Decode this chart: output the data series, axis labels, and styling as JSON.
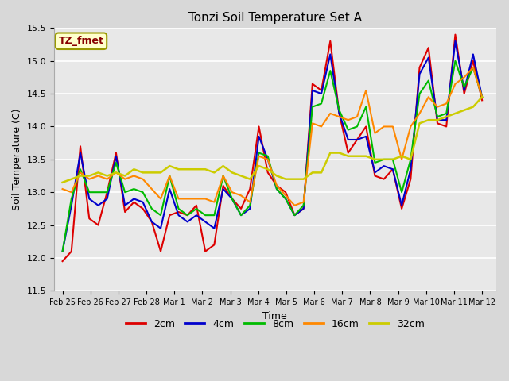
{
  "title": "Tonzi Soil Temperature Set A",
  "xlabel": "Time",
  "ylabel": "Soil Temperature (C)",
  "ylim": [
    11.5,
    15.5
  ],
  "annotation_text": "TZ_fmet",
  "annotation_color": "#880000",
  "annotation_bg": "#ffffcc",
  "annotation_edge": "#999900",
  "fig_facecolor": "#d8d8d8",
  "plot_facecolor": "#e8e8e8",
  "legend_entries": [
    "2cm",
    "4cm",
    "8cm",
    "16cm",
    "32cm"
  ],
  "line_colors": [
    "#dd0000",
    "#0000cc",
    "#00bb00",
    "#ff8800",
    "#cccc00"
  ],
  "line_styles": [
    "-",
    "-",
    "-",
    "-",
    "-"
  ],
  "line_widths": [
    1.5,
    1.5,
    1.5,
    1.5,
    1.8
  ],
  "xtick_labels": [
    "Feb 25",
    "Feb 26",
    "Feb 27",
    "Feb 28",
    "Mar 1",
    "Mar 2",
    "Mar 3",
    "Mar 4",
    "Mar 5",
    "Mar 6",
    "Mar 7",
    "Mar 8",
    "Mar 9",
    "Mar 10",
    "Mar 11",
    "Mar 12"
  ],
  "series_2cm": [
    11.95,
    12.1,
    13.7,
    12.6,
    12.5,
    13.0,
    13.6,
    12.7,
    12.85,
    12.75,
    12.55,
    12.1,
    12.65,
    12.7,
    12.65,
    12.8,
    12.1,
    12.2,
    13.1,
    12.9,
    12.75,
    13.05,
    14.0,
    13.3,
    13.1,
    13.0,
    12.65,
    12.75,
    14.65,
    14.55,
    15.3,
    14.2,
    13.6,
    13.8,
    14.0,
    13.25,
    13.2,
    13.35,
    12.75,
    13.2,
    14.9,
    15.2,
    14.05,
    14.0,
    15.4,
    14.5,
    15.0,
    14.4
  ],
  "series_4cm": [
    12.1,
    12.8,
    13.6,
    12.9,
    12.8,
    12.9,
    13.55,
    12.8,
    12.9,
    12.85,
    12.55,
    12.45,
    13.05,
    12.65,
    12.55,
    12.65,
    12.55,
    12.45,
    13.05,
    12.9,
    12.65,
    12.75,
    13.85,
    13.5,
    13.05,
    12.9,
    12.65,
    12.75,
    14.55,
    14.5,
    15.1,
    14.2,
    13.8,
    13.8,
    13.85,
    13.3,
    13.4,
    13.35,
    12.8,
    13.35,
    14.8,
    15.05,
    14.1,
    14.1,
    15.3,
    14.55,
    15.1,
    14.45
  ],
  "series_8cm": [
    12.1,
    12.9,
    13.35,
    13.0,
    13.0,
    13.0,
    13.45,
    13.0,
    13.05,
    13.0,
    12.75,
    12.65,
    13.25,
    12.75,
    12.65,
    12.75,
    12.65,
    12.65,
    13.25,
    12.9,
    12.65,
    12.8,
    13.6,
    13.55,
    13.05,
    12.9,
    12.65,
    12.8,
    14.3,
    14.35,
    14.85,
    14.25,
    13.95,
    14.0,
    14.3,
    13.45,
    13.5,
    13.5,
    13.0,
    13.5,
    14.5,
    14.7,
    14.15,
    14.2,
    15.0,
    14.6,
    14.9,
    14.45
  ],
  "series_16cm": [
    13.05,
    13.0,
    13.3,
    13.2,
    13.25,
    13.2,
    13.3,
    13.2,
    13.25,
    13.2,
    13.05,
    12.9,
    13.25,
    12.9,
    12.9,
    12.9,
    12.9,
    12.85,
    13.25,
    13.0,
    12.95,
    12.85,
    13.55,
    13.5,
    13.1,
    12.95,
    12.8,
    12.85,
    14.05,
    14.0,
    14.2,
    14.15,
    14.1,
    14.15,
    14.55,
    13.9,
    14.0,
    14.0,
    13.5,
    14.0,
    14.2,
    14.45,
    14.3,
    14.35,
    14.65,
    14.75,
    14.9,
    14.45
  ],
  "series_32cm": [
    13.15,
    13.2,
    13.25,
    13.25,
    13.3,
    13.25,
    13.3,
    13.25,
    13.35,
    13.3,
    13.3,
    13.3,
    13.4,
    13.35,
    13.35,
    13.35,
    13.35,
    13.3,
    13.4,
    13.3,
    13.25,
    13.2,
    13.4,
    13.35,
    13.25,
    13.2,
    13.2,
    13.2,
    13.3,
    13.3,
    13.6,
    13.6,
    13.55,
    13.55,
    13.55,
    13.5,
    13.5,
    13.5,
    13.55,
    13.5,
    14.05,
    14.1,
    14.1,
    14.15,
    14.2,
    14.25,
    14.3,
    14.45
  ]
}
